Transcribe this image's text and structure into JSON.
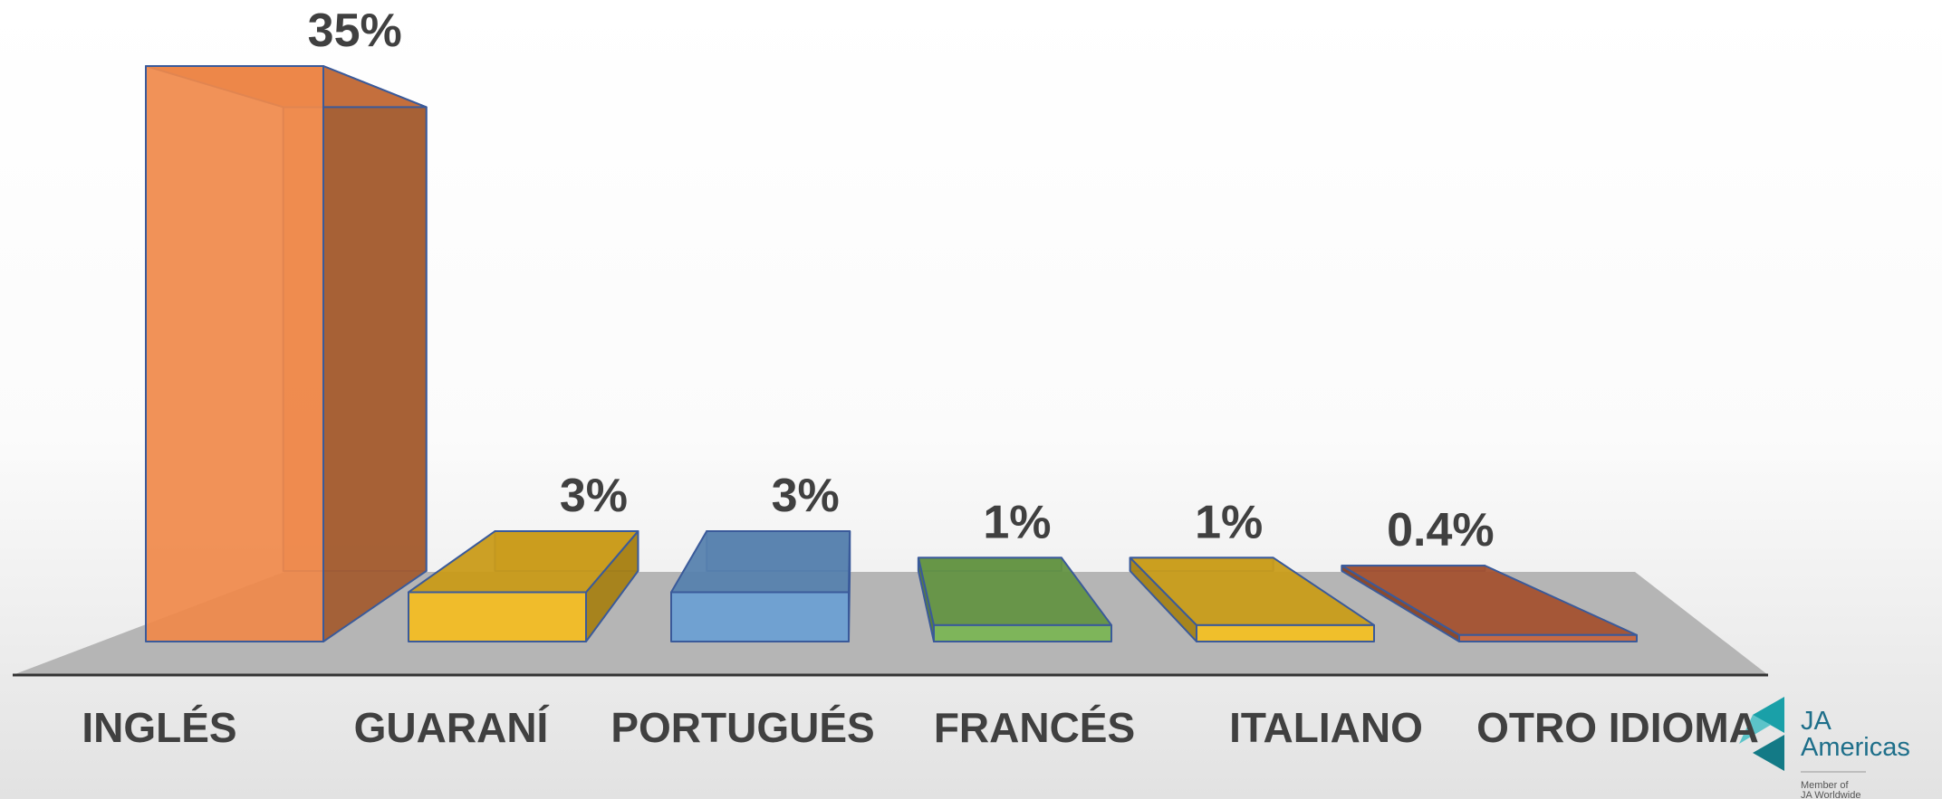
{
  "chart_data": {
    "type": "bar3d",
    "categories": [
      "INGLÉS",
      "GUARANÍ",
      "PORTUGUÉS",
      "FRANCÉS",
      "ITALIANO",
      "OTRO IDIOMA"
    ],
    "values": [
      35,
      3,
      3,
      1,
      1,
      0.4
    ],
    "value_labels": [
      "35%",
      "3%",
      "3%",
      "1%",
      "1%",
      "0.4%"
    ],
    "colors": [
      "#f0894a",
      "#f5bd1f",
      "#6a9fd4",
      "#7ab552",
      "#f5c020",
      "#c8643a"
    ]
  },
  "logo": {
    "lines": [
      "JA",
      "Americas"
    ],
    "tagline": [
      "Member of",
      "JA Worldwide"
    ]
  }
}
